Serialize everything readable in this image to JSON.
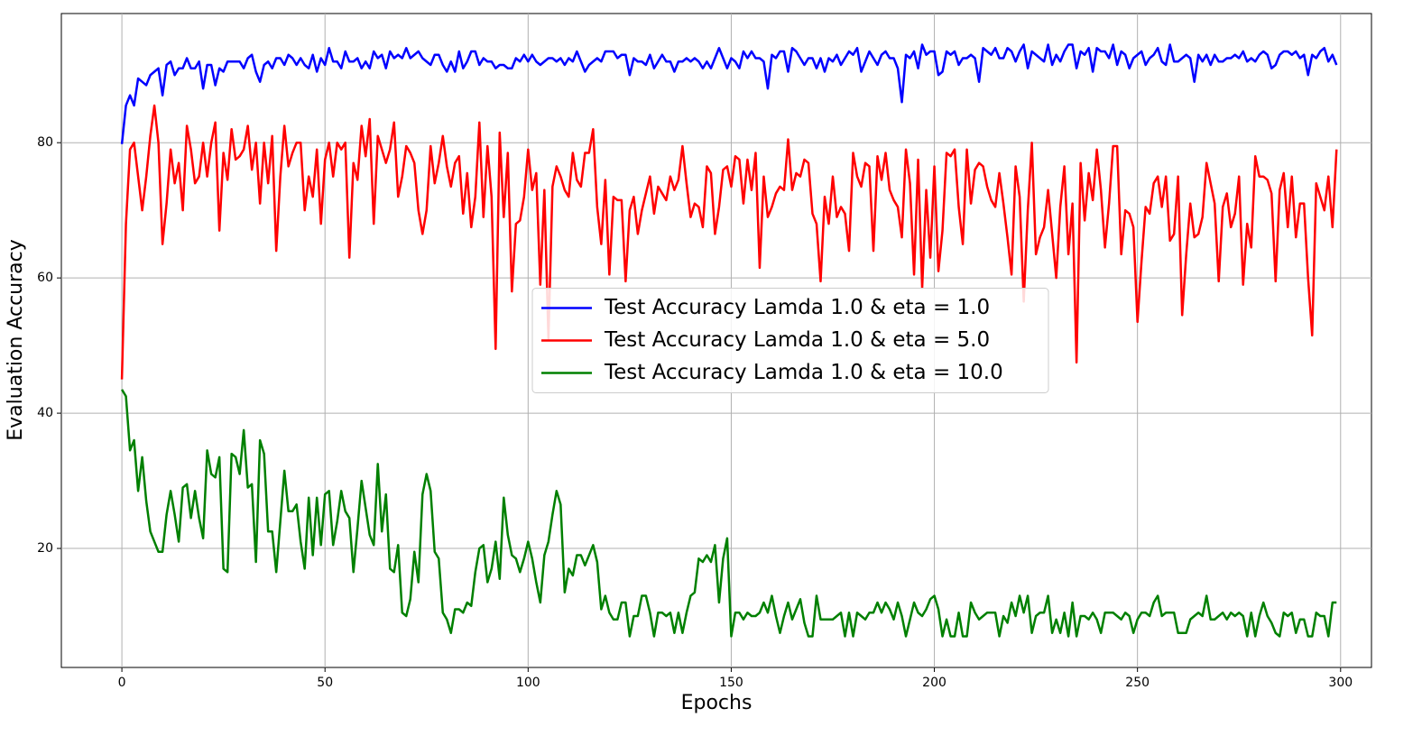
{
  "chart_data": {
    "type": "line",
    "xlabel": "Epochs",
    "ylabel": "Evaluation Accuracy",
    "xlim": [
      -14.9,
      307.6
    ],
    "ylim": [
      2.4,
      99.1
    ],
    "xticks": [
      0,
      50,
      100,
      150,
      200,
      250,
      300
    ],
    "yticks": [
      20,
      40,
      60,
      80
    ],
    "grid": true,
    "legend": "center",
    "x": [
      0,
      1,
      2,
      3,
      4,
      5,
      6,
      7,
      8,
      9,
      10,
      11,
      12,
      13,
      14,
      15,
      16,
      17,
      18,
      19,
      20,
      21,
      22,
      23,
      24,
      25,
      26,
      27,
      28,
      29,
      30,
      31,
      32,
      33,
      34,
      35,
      36,
      37,
      38,
      39,
      40,
      41,
      42,
      43,
      44,
      45,
      46,
      47,
      48,
      49,
      50,
      51,
      52,
      53,
      54,
      55,
      56,
      57,
      58,
      59,
      60,
      61,
      62,
      63,
      64,
      65,
      66,
      67,
      68,
      69,
      70,
      71,
      72,
      73,
      74,
      75,
      76,
      77,
      78,
      79,
      80,
      81,
      82,
      83,
      84,
      85,
      86,
      87,
      88,
      89,
      90,
      91,
      92,
      93,
      94,
      95,
      96,
      97,
      98,
      99,
      100,
      101,
      102,
      103,
      104,
      105,
      106,
      107,
      108,
      109,
      110,
      111,
      112,
      113,
      114,
      115,
      116,
      117,
      118,
      119,
      120,
      121,
      122,
      123,
      124,
      125,
      126,
      127,
      128,
      129,
      130,
      131,
      132,
      133,
      134,
      135,
      136,
      137,
      138,
      139,
      140,
      141,
      142,
      143,
      144,
      145,
      146,
      147,
      148,
      149,
      150,
      151,
      152,
      153,
      154,
      155,
      156,
      157,
      158,
      159,
      160,
      161,
      162,
      163,
      164,
      165,
      166,
      167,
      168,
      169,
      170,
      171,
      172,
      173,
      174,
      175,
      176,
      177,
      178,
      179,
      180,
      181,
      182,
      183,
      184,
      185,
      186,
      187,
      188,
      189,
      190,
      191,
      192,
      193,
      194,
      195,
      196,
      197,
      198,
      199,
      200,
      201,
      202,
      203,
      204,
      205,
      206,
      207,
      208,
      209,
      210,
      211,
      212,
      213,
      214,
      215,
      216,
      217,
      218,
      219,
      220,
      221,
      222,
      223,
      224,
      225,
      226,
      227,
      228,
      229,
      230,
      231,
      232,
      233,
      234,
      235,
      236,
      237,
      238,
      239,
      240,
      241,
      242,
      243,
      244,
      245,
      246,
      247,
      248,
      249,
      250,
      251,
      252,
      253,
      254,
      255,
      256,
      257,
      258,
      259,
      260,
      261,
      262,
      263,
      264,
      265,
      266,
      267,
      268,
      269,
      270,
      271,
      272,
      273,
      274,
      275,
      276,
      277,
      278,
      279,
      280,
      281,
      282,
      283,
      284,
      285,
      286,
      287,
      288,
      289,
      290,
      291,
      292,
      293,
      294,
      295,
      296,
      297,
      298,
      299
    ],
    "series": [
      {
        "name": "Test Accuracy Lamda 1.0 & eta = 1.0",
        "color": "#0000ff",
        "values": [
          79.8,
          85.5,
          87,
          85.5,
          89.5,
          89,
          88.5,
          90,
          90.5,
          91,
          87,
          91.5,
          92,
          90,
          91,
          91,
          92.5,
          91,
          91,
          92,
          88,
          91.5,
          91.5,
          88.5,
          91,
          90.5,
          92,
          92,
          92,
          92,
          91,
          92.5,
          93,
          90.5,
          89,
          91.5,
          92,
          91,
          92.5,
          92.5,
          91.5,
          93,
          92.5,
          91.5,
          92.5,
          91.5,
          91,
          93,
          90.5,
          92.5,
          91.5,
          94,
          92,
          92,
          91,
          93.5,
          92,
          92,
          92.5,
          91,
          92,
          91,
          93.5,
          92.5,
          93,
          91,
          93.5,
          92.5,
          93,
          92.5,
          94,
          92.5,
          93,
          93.5,
          92.5,
          92,
          91.5,
          93,
          93,
          91.5,
          90.5,
          92,
          90.5,
          93.5,
          91,
          92,
          93.5,
          93.5,
          91.5,
          92.5,
          92,
          92,
          91,
          91.5,
          91.5,
          91,
          91,
          92.5,
          92,
          93,
          92,
          93,
          92,
          91.5,
          92,
          92.5,
          92.5,
          92,
          92.5,
          91.5,
          92.5,
          92,
          93.5,
          92,
          90.5,
          91.5,
          92,
          92.5,
          92,
          93.5,
          93.5,
          93.5,
          92.5,
          93,
          93,
          90,
          92.5,
          92,
          92,
          91.5,
          93,
          91,
          92,
          93,
          92,
          92,
          90.5,
          92,
          92,
          92.5,
          92,
          92.5,
          92,
          91,
          92,
          91,
          92.5,
          94,
          92.5,
          91,
          92.5,
          92,
          91,
          93.5,
          92.5,
          93.5,
          92.5,
          92.5,
          92,
          88,
          93,
          92.5,
          93.5,
          93.5,
          90.5,
          94,
          93.5,
          92.5,
          91.5,
          92.5,
          92.5,
          91,
          92.5,
          90.5,
          92.5,
          92,
          93,
          91.5,
          92.5,
          93.5,
          93,
          94,
          90.5,
          92,
          93.5,
          92.5,
          91.5,
          93,
          93.5,
          92.5,
          92.5,
          91,
          86,
          93,
          92.5,
          93.5,
          91,
          94.5,
          93,
          93.5,
          93.5,
          90,
          90.5,
          93.5,
          93,
          93.5,
          91.5,
          92.5,
          92.5,
          93,
          92.5,
          89,
          94,
          93.5,
          93,
          94,
          92.5,
          92.5,
          94,
          93.5,
          92,
          93.5,
          94.5,
          91,
          93.5,
          93,
          92.5,
          92,
          94.5,
          91.5,
          93,
          92,
          93.5,
          94.5,
          94.5,
          91,
          93.5,
          93,
          94,
          90.5,
          94,
          93.5,
          93.5,
          92.5,
          94.5,
          91.5,
          93.5,
          93,
          91,
          92.5,
          93,
          93.5,
          91.5,
          92.5,
          93,
          94,
          92,
          91.5,
          94.5,
          92,
          92,
          92.5,
          93,
          92.5,
          89,
          93,
          92,
          93,
          91.5,
          93,
          92,
          92,
          92.5,
          92.5,
          93,
          92.5,
          93.5,
          92,
          92.5,
          92,
          93,
          93.5,
          93,
          91,
          91.5,
          93,
          93.5,
          93.5,
          93,
          93.5,
          92.5,
          93,
          90,
          93,
          92.5,
          93.5,
          94,
          92,
          93,
          91.5
        ]
      },
      {
        "name": "Test Accuracy Lamda 1.0 & eta = 5.0",
        "color": "#ff0000",
        "values": [
          45,
          68,
          79,
          80,
          75,
          70,
          75,
          81,
          85.5,
          80,
          65,
          71,
          79,
          74,
          77,
          70,
          82.5,
          79,
          74,
          75,
          80,
          75,
          80,
          83,
          67,
          78.5,
          74.5,
          82,
          77.5,
          78,
          79,
          82.5,
          76,
          80,
          71,
          80,
          74,
          81,
          64,
          75,
          82.5,
          76.5,
          78.5,
          80,
          80,
          70,
          75,
          72,
          79,
          68,
          77.5,
          80,
          75,
          80,
          79,
          80,
          63,
          77,
          74.5,
          82.5,
          78,
          83.5,
          68,
          81,
          79,
          77,
          79,
          83,
          72,
          75,
          79.5,
          78.5,
          77,
          70,
          66.5,
          70,
          79.5,
          74,
          77,
          81,
          76.5,
          73.5,
          77,
          78,
          69.5,
          75.5,
          67.5,
          72,
          83,
          69,
          79.5,
          72,
          49.5,
          81.5,
          69,
          78.5,
          58,
          68,
          68.5,
          72,
          79,
          73,
          75.5,
          59,
          73,
          51,
          73.5,
          76.5,
          75,
          73,
          72,
          78.5,
          74.5,
          73.5,
          78.5,
          78.5,
          82,
          70.5,
          65,
          74.5,
          60.5,
          72,
          71.5,
          71.5,
          59.5,
          70,
          72,
          66.5,
          70,
          72.5,
          75,
          69.5,
          73.5,
          72.5,
          71.5,
          75,
          73,
          74.5,
          79.5,
          74,
          69,
          71,
          70.5,
          67.5,
          76.5,
          75.5,
          66.5,
          70.5,
          76,
          76.5,
          73.5,
          78,
          77.5,
          71,
          77.5,
          73,
          78.5,
          61.5,
          75,
          69,
          70.5,
          72.5,
          73.5,
          73,
          80.5,
          73,
          75.5,
          75,
          77.5,
          77,
          69.5,
          68,
          59.5,
          72,
          68,
          75,
          69,
          70.5,
          69.5,
          64,
          78.5,
          75,
          73.5,
          77,
          76.5,
          64,
          78,
          74.5,
          78.5,
          73,
          71.5,
          70.5,
          66,
          79,
          74,
          60.5,
          77.5,
          58.5,
          73,
          63,
          76.5,
          61,
          67,
          78.5,
          78,
          79,
          70.5,
          65,
          79,
          71,
          76,
          77,
          76.5,
          73.5,
          71.5,
          70.5,
          75.5,
          71,
          66,
          60.5,
          76.5,
          72,
          56.5,
          70,
          80,
          63.5,
          66,
          67.5,
          73,
          66.5,
          60,
          70.5,
          76.5,
          63.5,
          71,
          47.5,
          77,
          68.5,
          75.5,
          71.5,
          79,
          73,
          64.5,
          71,
          79.5,
          79.5,
          63.5,
          70,
          69.5,
          67.5,
          53.5,
          62.5,
          70.5,
          69.5,
          74,
          75,
          70.5,
          75,
          65.5,
          66.5,
          75,
          54.5,
          63.5,
          71,
          66,
          66.5,
          69,
          77,
          74,
          71,
          59.5,
          70.5,
          72.5,
          67.5,
          69.5,
          75,
          59,
          68,
          64.5,
          78,
          75,
          75,
          74.5,
          72.5,
          59.5,
          73,
          75.5,
          67.5,
          75,
          66,
          71,
          71,
          60,
          51.5,
          74,
          72,
          70,
          75,
          67.5,
          79
        ]
      },
      {
        "name": "Test Accuracy Lamda 1.0 & eta = 10.0",
        "color": "#008000",
        "values": [
          43.5,
          42.5,
          34.5,
          36,
          28.5,
          33.5,
          27,
          22.5,
          21,
          19.5,
          19.5,
          25,
          28.5,
          25,
          21,
          29,
          29.5,
          24.5,
          28.5,
          24.5,
          21.5,
          34.5,
          31,
          30.5,
          33.5,
          17,
          16.5,
          34,
          33.5,
          31,
          37.5,
          29,
          29.5,
          18,
          36,
          34,
          22.5,
          22.5,
          16.5,
          24,
          31.5,
          25.5,
          25.5,
          26.5,
          21,
          17,
          27.5,
          19,
          27.5,
          20.5,
          28,
          28.5,
          20.5,
          24,
          28.5,
          25.5,
          24.5,
          16.5,
          23,
          30,
          26,
          22,
          20.5,
          32.5,
          22.5,
          28,
          17,
          16.5,
          20.5,
          10.5,
          10,
          12.5,
          19.5,
          15,
          28,
          31,
          28.5,
          19.5,
          18.5,
          10.5,
          9.5,
          7.5,
          11,
          11,
          10.5,
          12,
          11.5,
          16.5,
          20,
          20.5,
          15,
          17,
          21,
          15.5,
          27.5,
          22,
          19,
          18.5,
          16.5,
          18.5,
          21,
          18.5,
          15,
          12,
          19,
          21,
          25,
          28.5,
          26.5,
          13.5,
          17,
          16,
          19,
          19,
          17.5,
          19,
          20.5,
          18,
          11,
          13,
          10.5,
          9.5,
          9.5,
          12,
          12,
          7,
          10,
          10,
          13,
          13,
          10.5,
          7,
          10.5,
          10.5,
          10,
          10.5,
          7.5,
          10.5,
          7.5,
          10.5,
          13,
          13.5,
          18.5,
          18,
          19,
          18,
          20.5,
          12,
          18.5,
          21.5,
          7,
          10.5,
          10.5,
          9.5,
          10.5,
          10,
          10,
          10.5,
          12,
          10.5,
          13,
          10,
          7.5,
          10,
          12,
          9.5,
          11,
          12.5,
          9,
          7,
          7,
          13,
          9.5,
          9.5,
          9.5,
          9.5,
          10,
          10.5,
          7,
          10.5,
          7,
          10.5,
          10,
          9.5,
          10.5,
          10.5,
          12,
          10.5,
          12,
          11,
          9.5,
          12,
          10,
          7,
          9.5,
          12,
          10.5,
          10,
          11,
          12.5,
          13,
          11,
          7,
          9.5,
          7,
          7,
          10.5,
          7,
          7,
          12,
          10.5,
          9.5,
          10,
          10.5,
          10.5,
          10.5,
          7,
          10,
          9,
          12,
          10,
          13,
          10.5,
          13,
          7.5,
          10,
          10.5,
          10.5,
          13,
          7.5,
          9.5,
          7.5,
          10.5,
          7,
          12,
          7,
          10,
          10,
          9.5,
          10.5,
          9.5,
          7.5,
          10.5,
          10.5,
          10.5,
          10,
          9.5,
          10.5,
          10,
          7.5,
          9.5,
          10.5,
          10.5,
          10,
          12,
          13,
          10,
          10.5,
          10.5,
          10.5,
          7.5,
          7.5,
          7.5,
          9.5,
          10,
          10.5,
          10,
          13,
          9.5,
          9.5,
          10,
          10.5,
          9.5,
          10.5,
          10,
          10.5,
          10,
          7,
          10.5,
          7,
          10,
          12,
          10,
          9,
          7.5,
          7,
          10.5,
          10,
          10.5,
          7.5,
          9.5,
          9.5,
          7,
          7,
          10.5,
          10,
          10,
          7,
          12,
          12
        ]
      }
    ]
  }
}
